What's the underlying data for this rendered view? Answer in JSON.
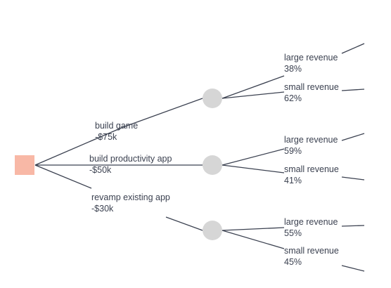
{
  "colors": {
    "decision_node": "#f8b8a6",
    "chance_node": "#d6d6d6",
    "line": "#3b4150",
    "text": "#3b4150"
  },
  "options": [
    {
      "label": "build game",
      "cost": "-$75k",
      "outcomes": [
        {
          "label": "large revenue",
          "probability": "38%"
        },
        {
          "label": "small revenue",
          "probability": "62%"
        }
      ]
    },
    {
      "label": "build productivity app",
      "cost": "-$50k",
      "outcomes": [
        {
          "label": "large revenue",
          "probability": "59%"
        },
        {
          "label": "small revenue",
          "probability": "41%"
        }
      ]
    },
    {
      "label": "revamp existing app",
      "cost": "-$30k",
      "outcomes": [
        {
          "label": "large revenue",
          "probability": "55%"
        },
        {
          "label": "small revenue",
          "probability": "45%"
        }
      ]
    }
  ]
}
